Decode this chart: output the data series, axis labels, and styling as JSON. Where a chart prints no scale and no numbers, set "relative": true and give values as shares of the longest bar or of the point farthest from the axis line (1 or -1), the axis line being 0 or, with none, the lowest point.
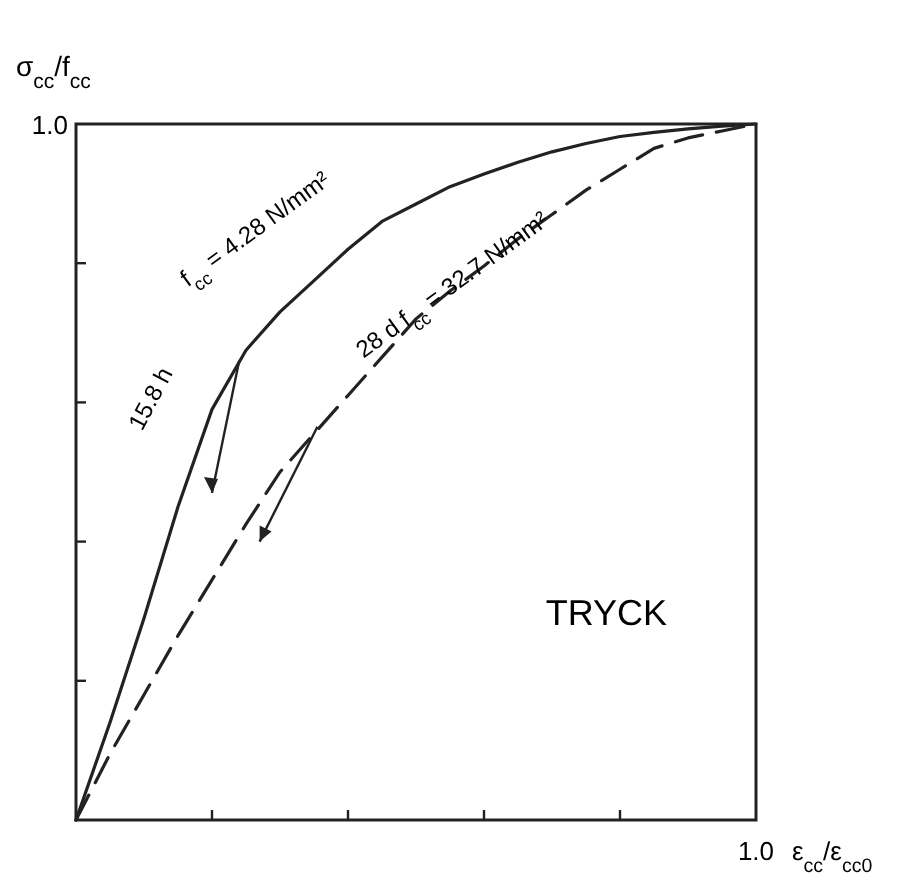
{
  "chart_data": {
    "type": "line",
    "ylabel": "σ$_{cc}$/f$_{cc}$",
    "xlabel": "ε$_{cc}$/ε$_{cc0}$",
    "relative": true,
    "grid": false,
    "categories": [
      null,
      null,
      null,
      null,
      null,
      null,
      null,
      null,
      null,
      null,
      null,
      null,
      null,
      null,
      null,
      null,
      null,
      null,
      null,
      null,
      null
    ],
    "series": [
      {
        "color": "#222222",
        "line_style": "solid",
        "values": [
          0,
          0.14,
          0.29,
          0.45,
          0.59,
          0.675,
          0.73,
          0.775,
          0.82,
          0.86,
          0.885,
          0.91,
          0.928,
          0.945,
          0.96,
          0.972,
          0.982,
          0.988,
          0.993,
          0.997,
          1
        ]
      },
      {
        "color": "#222222",
        "line_style": "dashed",
        "values": [
          0,
          0.095,
          0.18,
          0.265,
          0.345,
          0.425,
          0.5,
          0.555,
          0.61,
          0.665,
          0.72,
          0.76,
          0.796,
          0.835,
          0.87,
          0.905,
          0.935,
          0.965,
          0.98,
          0.99,
          1
        ]
      }
    ],
    "annotations": [
      "15.8 h",
      "f$_{cc}$ = 4.28 N/mm²",
      "28 d  f$_{cc}$ = 32.7 N/mm²",
      "1.0",
      "1.0",
      "TRYCK"
    ]
  }
}
